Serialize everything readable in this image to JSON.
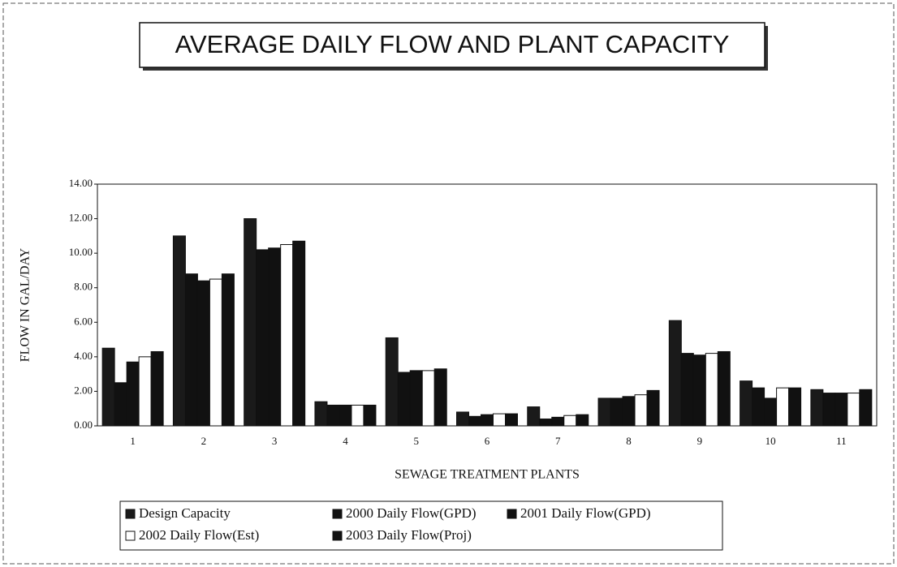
{
  "chart_data": {
    "type": "bar",
    "title": "AVERAGE DAILY FLOW AND PLANT CAPACITY",
    "x_label": "SEWAGE TREATMENT PLANTS",
    "y_label": "FLOW IN GAL/DAY",
    "categories": [
      "1",
      "2",
      "3",
      "4",
      "5",
      "6",
      "7",
      "8",
      "9",
      "10",
      "11"
    ],
    "series": [
      {
        "name": "Design Capacity",
        "color": "#1a1a1a",
        "values": [
          4.5,
          11.0,
          12.0,
          1.4,
          5.1,
          0.8,
          1.1,
          1.6,
          6.1,
          2.6,
          2.1
        ]
      },
      {
        "name": "2000 Daily Flow(GPD)",
        "color": "#111111",
        "values": [
          2.5,
          8.8,
          10.2,
          1.2,
          3.1,
          0.55,
          0.4,
          1.6,
          4.2,
          2.2,
          1.9
        ]
      },
      {
        "name": "2001 Daily Flow(GPD)",
        "color": "#111111",
        "values": [
          3.7,
          8.4,
          10.3,
          1.2,
          3.2,
          0.65,
          0.5,
          1.7,
          4.1,
          1.6,
          1.9
        ]
      },
      {
        "name": "2002 Daily Flow(Est)",
        "color": "#ffffff",
        "values": [
          4.0,
          8.5,
          10.5,
          1.2,
          3.2,
          0.7,
          0.6,
          1.8,
          4.2,
          2.2,
          1.9
        ]
      },
      {
        "name": "2003 Daily Flow(Proj)",
        "color": "#111111",
        "values": [
          4.3,
          8.8,
          10.7,
          1.2,
          3.3,
          0.7,
          0.65,
          2.05,
          4.3,
          2.2,
          2.1
        ]
      }
    ],
    "ylim": [
      0,
      14
    ],
    "yticks": [
      {
        "value": 0,
        "label": "0.00"
      },
      {
        "value": 2,
        "label": "2.00"
      },
      {
        "value": 4,
        "label": "4.00"
      },
      {
        "value": 6,
        "label": "6.00"
      },
      {
        "value": 8,
        "label": "8.00"
      },
      {
        "value": 10,
        "label": "10.00"
      },
      {
        "value": 12,
        "label": "12.00"
      },
      {
        "value": 14,
        "label": "14.00"
      }
    ],
    "grid": false
  }
}
